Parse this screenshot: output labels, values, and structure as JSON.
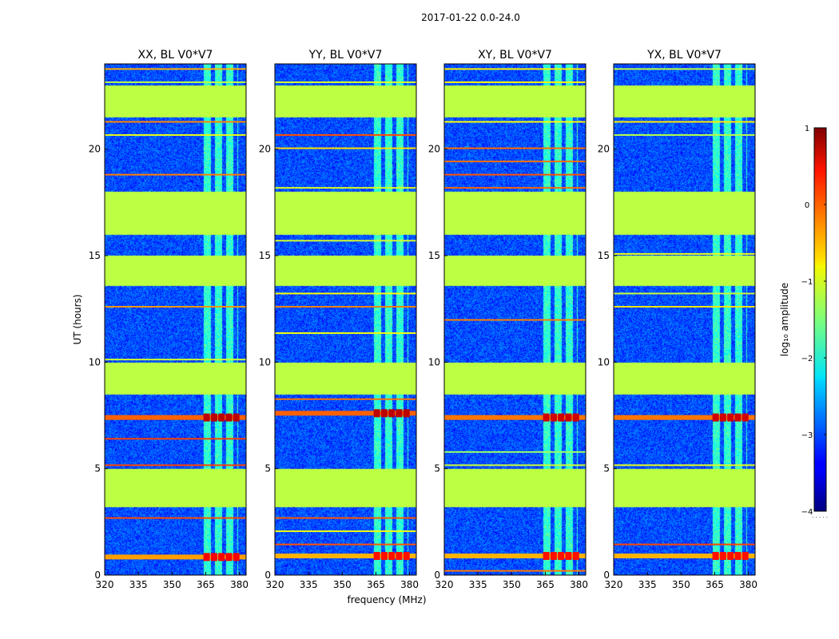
{
  "figure_title": "2017-01-22 0.0-24.0",
  "colorbar": {
    "label": "log₁₀ amplitude",
    "range": [
      -4,
      1
    ],
    "ticks": [
      1,
      0,
      -1,
      -2,
      -3,
      -4
    ],
    "tick_labels": [
      "1",
      "0",
      "−1",
      "−2",
      "−3",
      "−4"
    ],
    "colormap": "jet"
  },
  "chart_data": [
    {
      "type": "heatmap",
      "title": "XX, BL V0*V7",
      "xlabel": "frequency (MHz)",
      "ylabel": "UT (hours)",
      "xlim": [
        320,
        383
      ],
      "ylim": [
        0,
        24
      ],
      "xticks": [
        320,
        335,
        350,
        365,
        380
      ],
      "yticks": [
        0,
        5,
        10,
        15,
        20
      ],
      "value_range": [
        -4,
        1
      ],
      "background_log_amplitude": -3.0,
      "flagged_ut_ranges": [
        [
          3.2,
          5.0
        ],
        [
          8.5,
          10.0
        ],
        [
          13.6,
          15.0
        ],
        [
          16.0,
          18.0
        ],
        [
          21.5,
          23.0
        ]
      ],
      "rfi_channel_range_mhz": [
        364,
        379
      ],
      "bright_events": [
        {
          "ut": 0.85,
          "log_amplitude": 0.4
        },
        {
          "ut": 7.4,
          "log_amplitude": 0.7
        }
      ]
    },
    {
      "type": "heatmap",
      "title": "YY, BL V0*V7",
      "xlabel": "frequency (MHz)",
      "ylabel": "UT (hours)",
      "xlim": [
        320,
        383
      ],
      "ylim": [
        0,
        24
      ],
      "xticks": [
        320,
        335,
        350,
        365,
        380
      ],
      "yticks": [
        0,
        5,
        10,
        15,
        20
      ],
      "value_range": [
        -4,
        1
      ],
      "background_log_amplitude": -3.0,
      "flagged_ut_ranges": [
        [
          3.2,
          5.0
        ],
        [
          8.5,
          10.0
        ],
        [
          13.6,
          15.0
        ],
        [
          16.0,
          18.0
        ],
        [
          21.5,
          23.0
        ]
      ],
      "rfi_channel_range_mhz": [
        364,
        379
      ],
      "bright_events": [
        {
          "ut": 0.9,
          "log_amplitude": 0.3
        },
        {
          "ut": 7.6,
          "log_amplitude": 0.7
        }
      ]
    },
    {
      "type": "heatmap",
      "title": "XY, BL V0*V7",
      "xlabel": "frequency (MHz)",
      "ylabel": "UT (hours)",
      "xlim": [
        320,
        383
      ],
      "ylim": [
        0,
        24
      ],
      "xticks": [
        320,
        335,
        350,
        365,
        380
      ],
      "yticks": [
        0,
        5,
        10,
        15,
        20
      ],
      "value_range": [
        -4,
        1
      ],
      "background_log_amplitude": -3.0,
      "flagged_ut_ranges": [
        [
          3.2,
          5.0
        ],
        [
          8.5,
          10.0
        ],
        [
          13.6,
          15.0
        ],
        [
          16.0,
          18.0
        ],
        [
          21.5,
          23.0
        ]
      ],
      "rfi_channel_range_mhz": [
        364,
        379
      ],
      "bright_events": [
        {
          "ut": 0.9,
          "log_amplitude": 0.3
        },
        {
          "ut": 7.4,
          "log_amplitude": 0.6
        }
      ]
    },
    {
      "type": "heatmap",
      "title": "YX, BL V0*V7",
      "xlabel": "frequency (MHz)",
      "ylabel": "UT (hours)",
      "xlim": [
        320,
        383
      ],
      "ylim": [
        0,
        24
      ],
      "xticks": [
        320,
        335,
        350,
        365,
        380
      ],
      "yticks": [
        0,
        5,
        10,
        15,
        20
      ],
      "value_range": [
        -4,
        1
      ],
      "background_log_amplitude": -3.0,
      "flagged_ut_ranges": [
        [
          3.2,
          5.0
        ],
        [
          8.5,
          10.0
        ],
        [
          13.6,
          15.0
        ],
        [
          16.0,
          18.0
        ],
        [
          21.5,
          23.0
        ]
      ],
      "rfi_channel_range_mhz": [
        364,
        379
      ],
      "bright_events": [
        {
          "ut": 0.9,
          "log_amplitude": 0.3
        },
        {
          "ut": 7.4,
          "log_amplitude": 0.6
        }
      ]
    }
  ]
}
